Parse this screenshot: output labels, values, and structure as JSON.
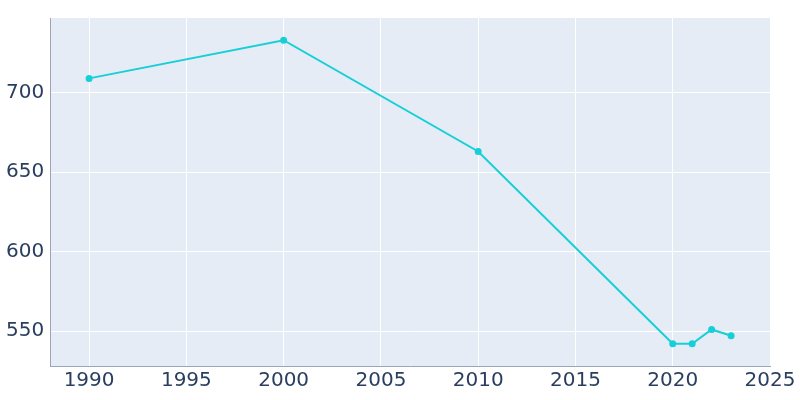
{
  "chart_data": {
    "type": "line",
    "x": [
      1990,
      2000,
      2010,
      2020,
      2021,
      2022,
      2023
    ],
    "values": [
      709,
      733,
      663,
      542,
      542,
      551,
      547
    ],
    "color": "#17cfd6",
    "marker": "circle",
    "line_style": "solid",
    "xlim": [
      1988,
      2025
    ],
    "xticks": [
      1990,
      1995,
      2000,
      2005,
      2010,
      2015,
      2020,
      2025
    ],
    "ylim": [
      528,
      747
    ],
    "yticks": [
      550,
      600,
      650,
      700
    ],
    "grid": true
  }
}
